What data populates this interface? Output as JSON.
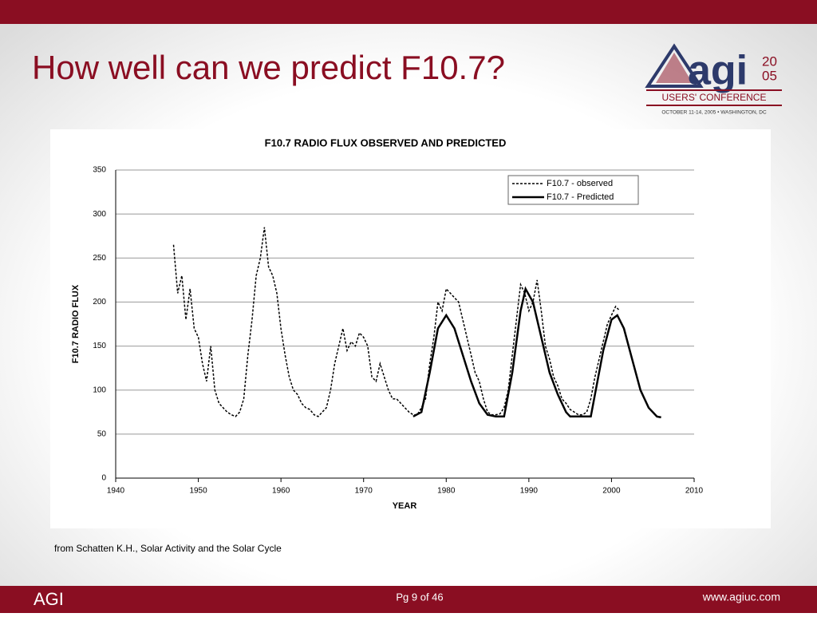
{
  "slide": {
    "title": "How well can we predict F10.7?",
    "source": "from Schatten K.H., Solar Activity and the Solar Cycle",
    "footer_left": "AGI",
    "page": "Pg 9 of 46",
    "footer_right": "www.agiuc.com"
  },
  "logo": {
    "name": "agi",
    "year_top": "20",
    "year_bottom": "05",
    "subtitle": "USERS' CONFERENCE",
    "date": "OCTOBER 11-14, 2005 • WASHINGTON, DC"
  },
  "chart_data": {
    "type": "line",
    "title": "F10.7 RADIO FLUX OBSERVED AND PREDICTED",
    "x_label": "YEAR",
    "y_label": "F10.7 RADIO FLUX",
    "xlim": [
      1940,
      2010
    ],
    "xticks": [
      1940,
      1950,
      1960,
      1970,
      1980,
      1990,
      2000,
      2010
    ],
    "ylim": [
      0,
      350
    ],
    "yticks": [
      0,
      50,
      100,
      150,
      200,
      250,
      300,
      350
    ],
    "grid": true,
    "legend": "upper right",
    "series": [
      {
        "name": "F10.7 - observed",
        "color": "#000000",
        "dash": true,
        "x": [
          1947,
          1947.5,
          1948,
          1948.5,
          1949,
          1949.5,
          1950,
          1950.5,
          1951,
          1951.5,
          1952,
          1952.5,
          1953,
          1953.5,
          1954,
          1954.5,
          1955,
          1955.5,
          1956,
          1956.5,
          1957,
          1957.5,
          1958,
          1958.5,
          1959,
          1959.5,
          1960,
          1960.5,
          1961,
          1961.5,
          1962,
          1962.5,
          1963,
          1963.5,
          1964,
          1964.5,
          1965,
          1965.5,
          1966,
          1966.5,
          1967,
          1967.5,
          1968,
          1968.5,
          1969,
          1969.5,
          1970,
          1970.5,
          1971,
          1971.5,
          1972,
          1972.5,
          1973,
          1973.5,
          1974,
          1974.5,
          1975,
          1975.5,
          1976,
          1976.5,
          1977,
          1977.5,
          1978,
          1978.5,
          1979,
          1979.5,
          1980,
          1980.5,
          1981,
          1981.5,
          1982,
          1982.5,
          1983,
          1983.5,
          1984,
          1984.5,
          1985,
          1985.5,
          1986,
          1986.5,
          1987,
          1987.5,
          1988,
          1988.5,
          1989,
          1989.5,
          1990,
          1990.5,
          1991,
          1991.5,
          1992,
          1992.5,
          1993,
          1993.5,
          1994,
          1994.5,
          1995,
          1995.5,
          1996,
          1996.5,
          1997,
          1997.5,
          1998,
          1998.5,
          1999,
          1999.5,
          2000,
          2000.5,
          2001
        ],
        "values": [
          265,
          210,
          230,
          180,
          215,
          170,
          160,
          130,
          110,
          150,
          100,
          85,
          80,
          75,
          72,
          70,
          75,
          90,
          140,
          180,
          230,
          250,
          285,
          240,
          230,
          210,
          170,
          140,
          115,
          100,
          95,
          85,
          80,
          78,
          72,
          70,
          75,
          80,
          100,
          130,
          150,
          170,
          145,
          155,
          150,
          165,
          160,
          150,
          115,
          110,
          130,
          115,
          100,
          90,
          90,
          85,
          80,
          75,
          72,
          72,
          80,
          90,
          130,
          160,
          200,
          190,
          215,
          210,
          205,
          200,
          180,
          160,
          140,
          120,
          110,
          90,
          75,
          72,
          72,
          73,
          80,
          100,
          140,
          180,
          220,
          210,
          190,
          200,
          225,
          190,
          150,
          135,
          115,
          105,
          90,
          85,
          78,
          75,
          72,
          72,
          75,
          90,
          115,
          135,
          155,
          175,
          185,
          195,
          190
        ]
      },
      {
        "name": "F10.7 - Predicted",
        "color": "#000000",
        "dash": false,
        "x": [
          1976,
          1977,
          1978,
          1979,
          1980,
          1981,
          1982,
          1983,
          1984,
          1985,
          1986,
          1987,
          1988,
          1989,
          1989.6,
          1990.5,
          1991.5,
          1992.5,
          1993.5,
          1994.5,
          1995,
          1996,
          1997,
          1997.5,
          1998,
          1999,
          2000,
          2000.7,
          2001.5,
          2002.5,
          2003.5,
          2004.5,
          2005.5,
          2006
        ],
        "values": [
          70,
          75,
          120,
          170,
          185,
          170,
          140,
          110,
          85,
          72,
          70,
          70,
          120,
          190,
          215,
          200,
          160,
          120,
          95,
          75,
          70,
          70,
          70,
          70,
          95,
          145,
          180,
          185,
          170,
          135,
          100,
          80,
          70,
          69
        ]
      }
    ]
  }
}
